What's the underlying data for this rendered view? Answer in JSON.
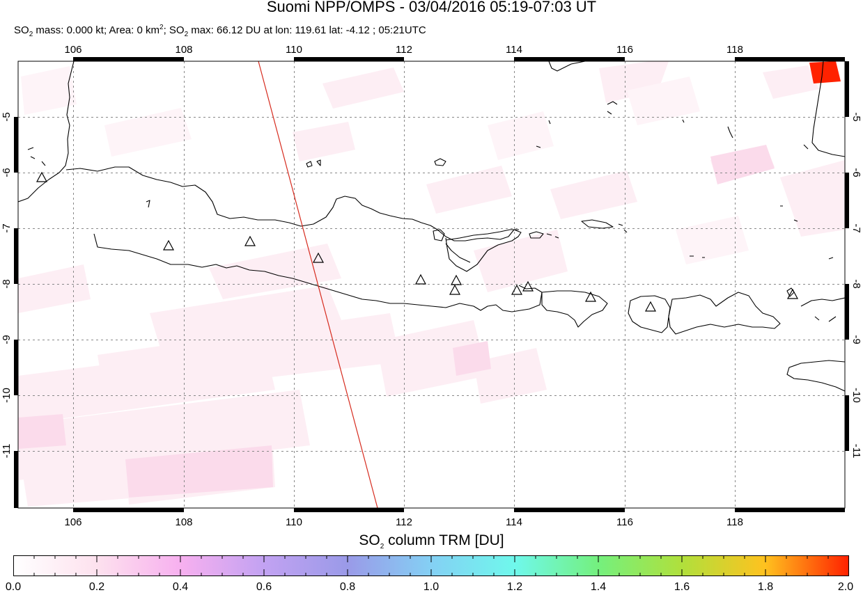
{
  "header": {
    "title": "Suomi NPP/OMPS - 03/04/2016 05:19-07:03 UT",
    "subtitle_so2_a": "SO",
    "subtitle_sub": "2",
    "subtitle_mass": " mass: 0.000 kt; Area: 0 km",
    "subtitle_sup": "2",
    "subtitle_sep": "; SO",
    "subtitle_rest": " max: 66.12 DU at lon: 119.61 lat: -4.12 ; 05:21UTC"
  },
  "map": {
    "lon_labels": [
      "106",
      "108",
      "110",
      "112",
      "114",
      "116",
      "118"
    ],
    "lat_labels": [
      "-5",
      "-6",
      "-7",
      "-8",
      "-9",
      "-10",
      "-11"
    ],
    "lon_range": [
      104.9,
      120.0
    ],
    "lat_range": [
      -12.1,
      -4.0
    ],
    "grid": true,
    "volcano_marker": "triangle-icon",
    "orbit_line_color": "#d62b1e",
    "max_so2_pixel_color": "#ff2200"
  },
  "colorbar": {
    "title_a": "SO",
    "title_sub": "2",
    "title_b": " column TRM [DU]",
    "ticks": [
      "0.0",
      "0.2",
      "0.4",
      "0.6",
      "0.8",
      "1.0",
      "1.2",
      "1.4",
      "1.6",
      "1.8",
      "2.0"
    ],
    "range": [
      0.0,
      2.0
    ],
    "colors": [
      "#ffffff",
      "#fde1ee",
      "#f7b0ef",
      "#c2a2f2",
      "#9a9ae8",
      "#84d0f4",
      "#6ff8ec",
      "#74f07e",
      "#b0e03c",
      "#ffc21f",
      "#ff2200"
    ]
  }
}
